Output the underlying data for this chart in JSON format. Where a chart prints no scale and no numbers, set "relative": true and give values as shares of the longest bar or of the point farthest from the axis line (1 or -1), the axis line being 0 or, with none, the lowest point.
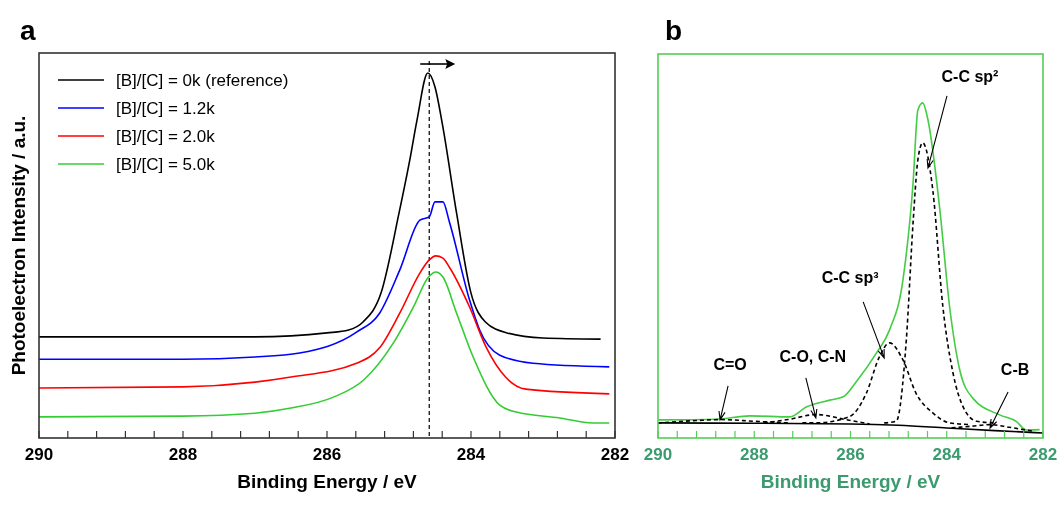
{
  "chart_data": [
    {
      "type": "line",
      "title": "a",
      "xlabel": "Binding Energy / eV",
      "ylabel": "Photoelectron Intensity / a.u.",
      "relative": true,
      "xlim": [
        290,
        282
      ],
      "xticks": [
        290,
        {
          "value": 289.6,
          "label": null
        },
        {
          "value": 289.2,
          "label": null
        },
        {
          "value": 288.8,
          "label": null
        },
        {
          "value": 288.4,
          "label": null
        },
        288,
        {
          "value": 287.6,
          "label": null
        },
        {
          "value": 287.2,
          "label": null
        },
        {
          "value": 286.8,
          "label": null
        },
        {
          "value": 286.4,
          "label": null
        },
        286,
        {
          "value": 285.6,
          "label": null
        },
        {
          "value": 285.2,
          "label": null
        },
        {
          "value": 284.8,
          "label": null
        },
        {
          "value": 284.4,
          "label": null
        },
        284,
        {
          "value": 283.6,
          "label": null
        },
        {
          "value": 283.2,
          "label": null
        },
        {
          "value": 282.8,
          "label": null
        },
        {
          "value": 282.4,
          "label": null
        },
        282
      ],
      "tick_labels": "x",
      "legend": "top left",
      "grid": false,
      "ref_lines": [
        {
          "axis": "x",
          "value": 284.58,
          "color": "#000000",
          "line_style": "dashed"
        }
      ],
      "series": [
        {
          "name": "[B]/[C] = 0k (reference)",
          "color": "#000000",
          "x": [
            290,
            288,
            287,
            286,
            285.7,
            285.5,
            285.25,
            285,
            284.85,
            284.75,
            284.6,
            284.5,
            284.4,
            284.2,
            284,
            283.8,
            283.5,
            283,
            282.2
          ],
          "values": [
            0.277,
            0.277,
            0.277,
            0.288,
            0.296,
            0.318,
            0.397,
            0.616,
            0.762,
            0.871,
            1,
            0.962,
            0.863,
            0.616,
            0.397,
            0.318,
            0.288,
            0.274,
            0.271
          ]
        },
        {
          "name": "[B]/[C] = 1.2k",
          "color": "#0000ff",
          "x": [
            290,
            288,
            287,
            286.38,
            285.59,
            285.27,
            284.99,
            284.71,
            284.58,
            284.5,
            284.39,
            284.3,
            284.02,
            283.88,
            283.6,
            283.14,
            282.08
          ],
          "values": [
            0.216,
            0.216,
            0.222,
            0.233,
            0.29,
            0.342,
            0.46,
            0.597,
            0.606,
            0.647,
            0.647,
            0.592,
            0.378,
            0.296,
            0.227,
            0.205,
            0.195
          ]
        },
        {
          "name": "[B]/[C] = 2.0k",
          "color": "#ff0000",
          "x": [
            290,
            288,
            287,
            286.5,
            285.59,
            285.27,
            284.99,
            284.71,
            284.58,
            284.49,
            284.39,
            284.3,
            284.02,
            283.79,
            283.52,
            283.24,
            282.08
          ],
          "values": [
            0.137,
            0.14,
            0.153,
            0.167,
            0.205,
            0.247,
            0.342,
            0.452,
            0.488,
            0.499,
            0.493,
            0.468,
            0.359,
            0.249,
            0.167,
            0.134,
            0.121
          ]
        },
        {
          "name": "[B]/[C] = 5.0k",
          "color": "#33cc33",
          "x": [
            290,
            288,
            287,
            286.5,
            285.91,
            285.49,
            285.08,
            284.8,
            284.59,
            284.49,
            284.39,
            284.2,
            283.97,
            283.6,
            283.37,
            282.77,
            282.31,
            282.08
          ],
          "values": [
            0.058,
            0.06,
            0.068,
            0.082,
            0.112,
            0.159,
            0.26,
            0.359,
            0.441,
            0.455,
            0.441,
            0.342,
            0.222,
            0.09,
            0.071,
            0.055,
            0.041,
            0.041
          ]
        }
      ]
    },
    {
      "type": "line",
      "title": "b",
      "xlabel": "Binding Energy / eV",
      "relative": true,
      "xlim": [
        290,
        282
      ],
      "xticks": [
        290,
        {
          "value": 289.6,
          "label": null
        },
        {
          "value": 289.2,
          "label": null
        },
        {
          "value": 288.8,
          "label": null
        },
        {
          "value": 288.4,
          "label": null
        },
        288,
        {
          "value": 287.6,
          "label": null
        },
        {
          "value": 287.2,
          "label": null
        },
        {
          "value": 286.8,
          "label": null
        },
        {
          "value": 286.4,
          "label": null
        },
        286,
        {
          "value": 285.6,
          "label": null
        },
        {
          "value": 285.2,
          "label": null
        },
        {
          "value": 284.8,
          "label": null
        },
        {
          "value": 284.4,
          "label": null
        },
        284,
        {
          "value": 283.6,
          "label": null
        },
        {
          "value": 283.2,
          "label": null
        },
        {
          "value": 282.8,
          "label": null
        },
        {
          "value": 282.4,
          "label": null
        },
        282
      ],
      "tick_labels": "x",
      "legend": false,
      "grid": false,
      "annotations": [
        {
          "text": "C-C sp²",
          "x": 284.39,
          "y": 0.806
        },
        {
          "text": "C-C sp³",
          "x": 285.3,
          "y": 0.239
        },
        {
          "text": "C-O, C-N",
          "x": 286.72,
          "y": 0.06
        },
        {
          "text": "C=O",
          "x": 288.71,
          "y": 0.054
        },
        {
          "text": "C-B",
          "x": 283.1,
          "y": 0.03
        }
      ],
      "series": [
        {
          "color": "#44cc44",
          "line_style": "solid",
          "x": [
            289.99,
            288.78,
            288.09,
            287.26,
            286.91,
            286.43,
            286.15,
            285.88,
            285.46,
            285.19,
            284.91,
            284.7,
            284.6,
            284.5,
            284.39,
            284.15,
            283.94,
            283.73,
            283.46,
            282.9,
            282.55,
            282.35,
            282.07
          ],
          "values": [
            0.054,
            0.056,
            0.066,
            0.063,
            0.093,
            0.113,
            0.123,
            0.168,
            0.254,
            0.322,
            0.472,
            0.761,
            0.979,
            1,
            0.949,
            0.69,
            0.391,
            0.203,
            0.119,
            0.069,
            0.049,
            0.024,
            0.025
          ]
        },
        {
          "color": "#000000",
          "line_style": "dashed",
          "x": [
            285.3,
            285.05,
            284.84,
            284.7,
            284.6,
            284.5,
            284.29,
            284.08,
            283.87,
            283.66,
            283.38,
            283
          ],
          "values": [
            0.045,
            0.05,
            0.293,
            0.642,
            0.83,
            0.881,
            0.74,
            0.391,
            0.194,
            0.093,
            0.05,
            0.045
          ]
        },
        {
          "color": "#000000",
          "line_style": "dashed",
          "x": [
            287,
            286.71,
            286.02,
            285.67,
            285.4,
            285.19,
            284.91,
            284.64,
            284.29,
            283.94,
            283.5
          ],
          "values": [
            0.045,
            0.045,
            0.064,
            0.134,
            0.242,
            0.284,
            0.233,
            0.134,
            0.075,
            0.045,
            0.04
          ]
        },
        {
          "color": "#000000",
          "line_style": "dashed",
          "x": [
            287.8,
            287.3,
            286.71,
            286.1,
            285.6
          ],
          "values": [
            0.045,
            0.055,
            0.07,
            0.055,
            0.042
          ]
        },
        {
          "color": "#000000",
          "line_style": "dashed",
          "x": [
            290,
            289.2,
            288.7,
            288,
            287.3
          ],
          "values": [
            0.045,
            0.052,
            0.055,
            0.05,
            0.045
          ]
        },
        {
          "color": "#000000",
          "line_style": "dashed",
          "x": [
            283.9,
            283.5,
            283.1,
            282.7,
            282.2
          ],
          "values": [
            0.03,
            0.035,
            0.04,
            0.032,
            0.02
          ]
        },
        {
          "color": "#000000",
          "line_style": "solid",
          "x": [
            290,
            288,
            286,
            285,
            284,
            283,
            282
          ],
          "values": [
            0.045,
            0.044,
            0.042,
            0.038,
            0.03,
            0.022,
            0.015
          ]
        }
      ]
    }
  ]
}
